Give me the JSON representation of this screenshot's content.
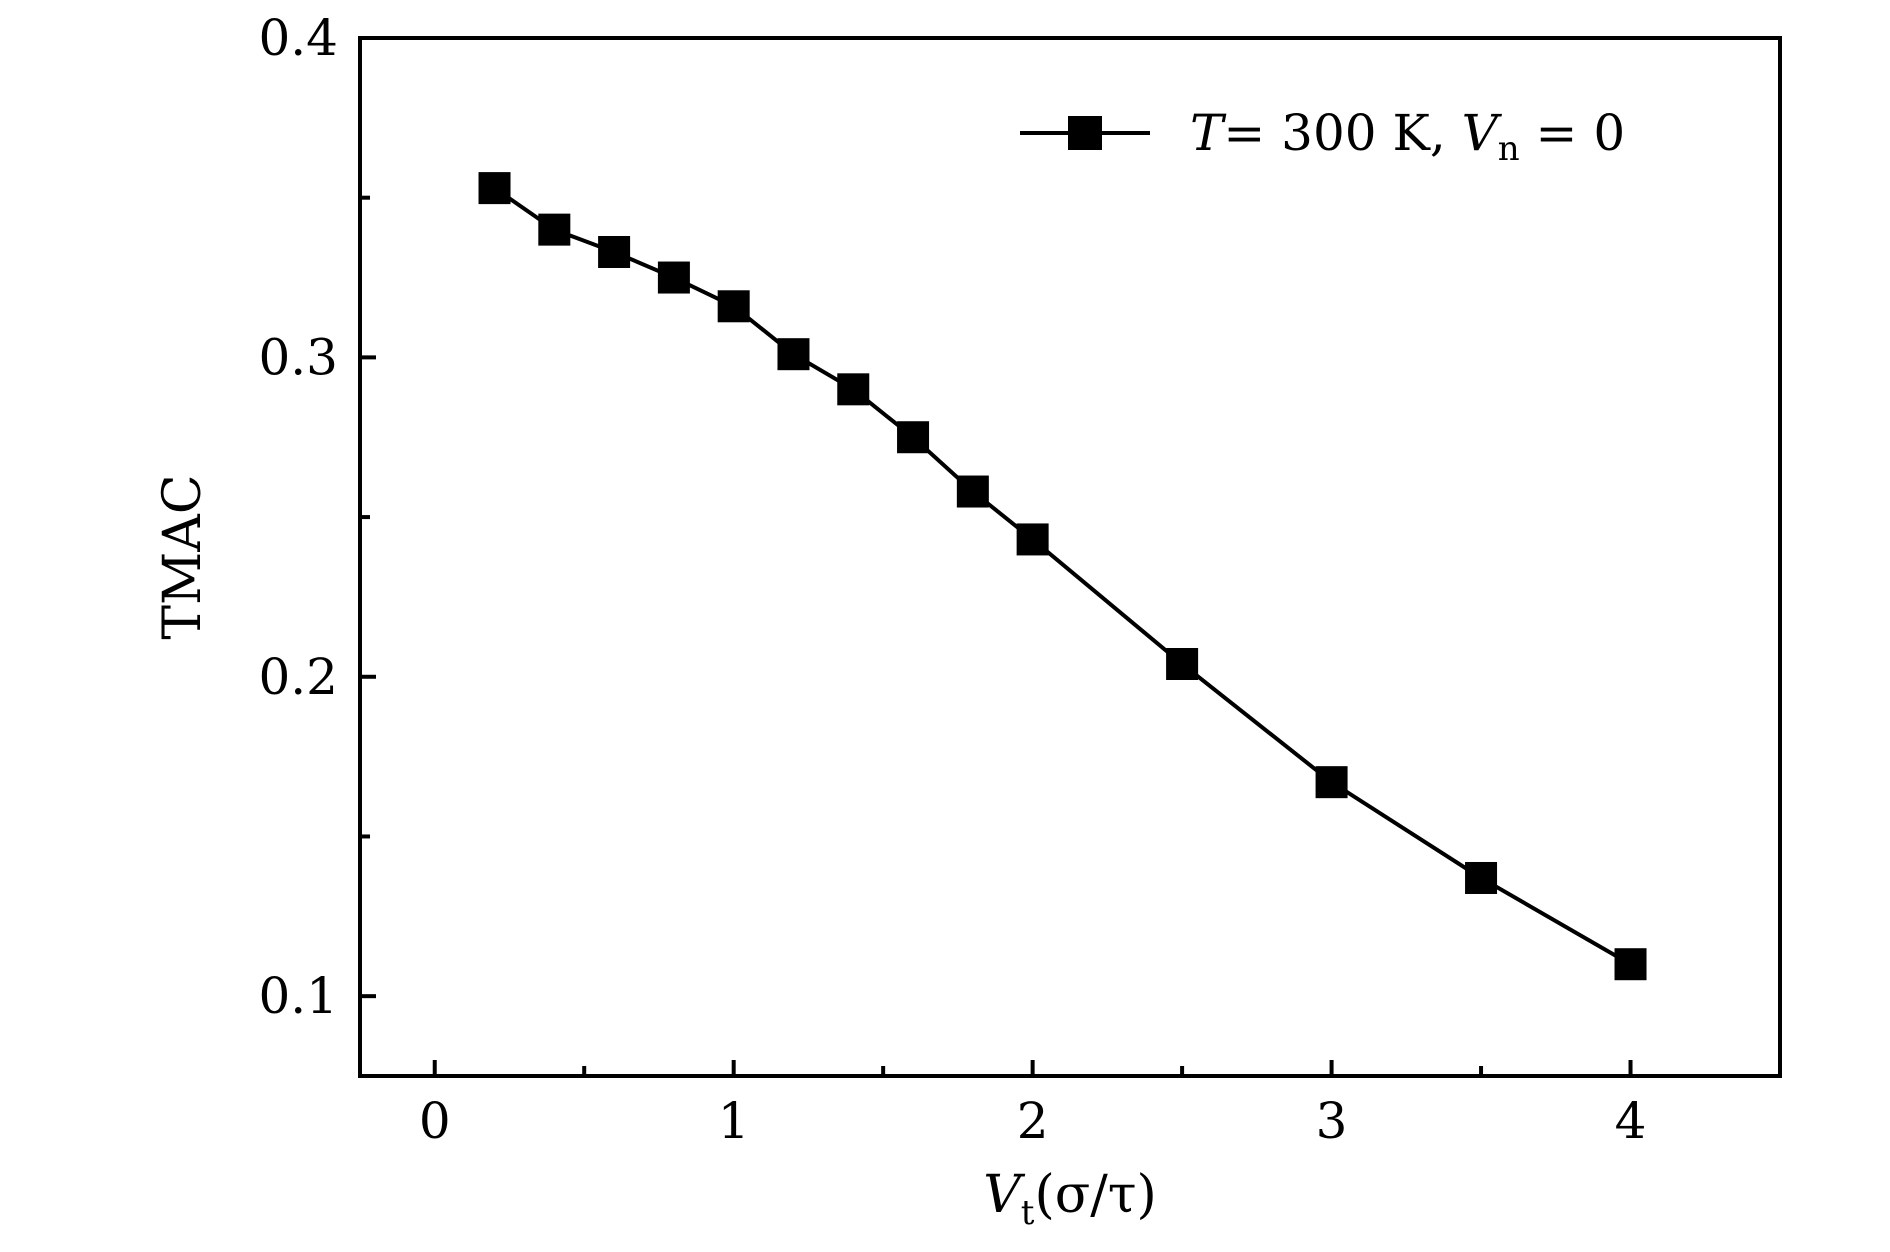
{
  "chart_data": {
    "type": "line",
    "title": "",
    "xlabel": "V",
    "xlabel_sub": "t",
    "xlabel_units": "(σ/τ)",
    "ylabel": "TMAC",
    "xlim": [
      -0.25,
      4.5
    ],
    "ylim": [
      0.075,
      0.4
    ],
    "x_ticks": [
      0,
      1,
      2,
      3,
      4
    ],
    "x_tick_labels": [
      "0",
      "1",
      "2",
      "3",
      "4"
    ],
    "x_minor_ticks": [
      0.5,
      1.5,
      2.5,
      3.5
    ],
    "y_ticks": [
      0.1,
      0.2,
      0.3,
      0.4
    ],
    "y_tick_labels": [
      "0.1",
      "0.2",
      "0.3",
      "0.4"
    ],
    "y_minor_ticks": [
      0.15,
      0.25,
      0.35
    ],
    "grid": false,
    "legend_position": "top-right",
    "series": [
      {
        "name": "T = 300 K, V_n = 0",
        "legend": {
          "T": "T",
          "eq1": "= 300 K, ",
          "V": "V",
          "sub": "n",
          "eq2": " = 0"
        },
        "color": "#000000",
        "marker": "square",
        "x": [
          0.2,
          0.4,
          0.6,
          0.8,
          1.0,
          1.2,
          1.4,
          1.6,
          1.8,
          2.0,
          2.5,
          3.0,
          3.5,
          4.0
        ],
        "y": [
          0.353,
          0.34,
          0.333,
          0.325,
          0.316,
          0.301,
          0.29,
          0.275,
          0.258,
          0.243,
          0.204,
          0.167,
          0.137,
          0.11
        ]
      }
    ]
  }
}
